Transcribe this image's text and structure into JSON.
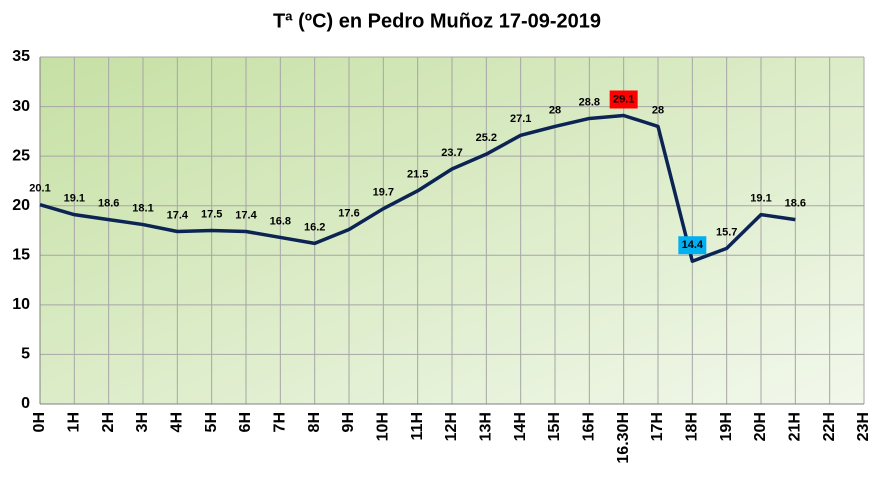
{
  "chart_data": {
    "type": "line",
    "title": "Tª (ºC) en Pedro Muñoz 17-09-2019",
    "categories": [
      "0H",
      "1H",
      "2H",
      "3H",
      "4H",
      "5H",
      "6H",
      "7H",
      "8H",
      "9H",
      "10H",
      "11H",
      "12H",
      "13H",
      "14H",
      "15H",
      "16H",
      "16.30H",
      "17H",
      "18H",
      "19H",
      "20H",
      "21H",
      "22H",
      "23H"
    ],
    "series": [
      {
        "name": "Tª",
        "color": "#0c2454",
        "values": [
          20.1,
          19.1,
          18.6,
          18.1,
          17.4,
          17.5,
          17.4,
          16.8,
          16.2,
          17.6,
          19.7,
          21.5,
          23.7,
          25.2,
          27.1,
          28,
          28.8,
          29.1,
          28,
          14.4,
          15.7,
          19.1,
          18.6,
          null,
          null
        ]
      }
    ],
    "ylim": [
      0,
      35
    ],
    "yticks": [
      0,
      5,
      10,
      15,
      20,
      25,
      30,
      35
    ],
    "grid": true,
    "max_label_color": "#ff0000",
    "min_label_color": "#00b0f0"
  }
}
